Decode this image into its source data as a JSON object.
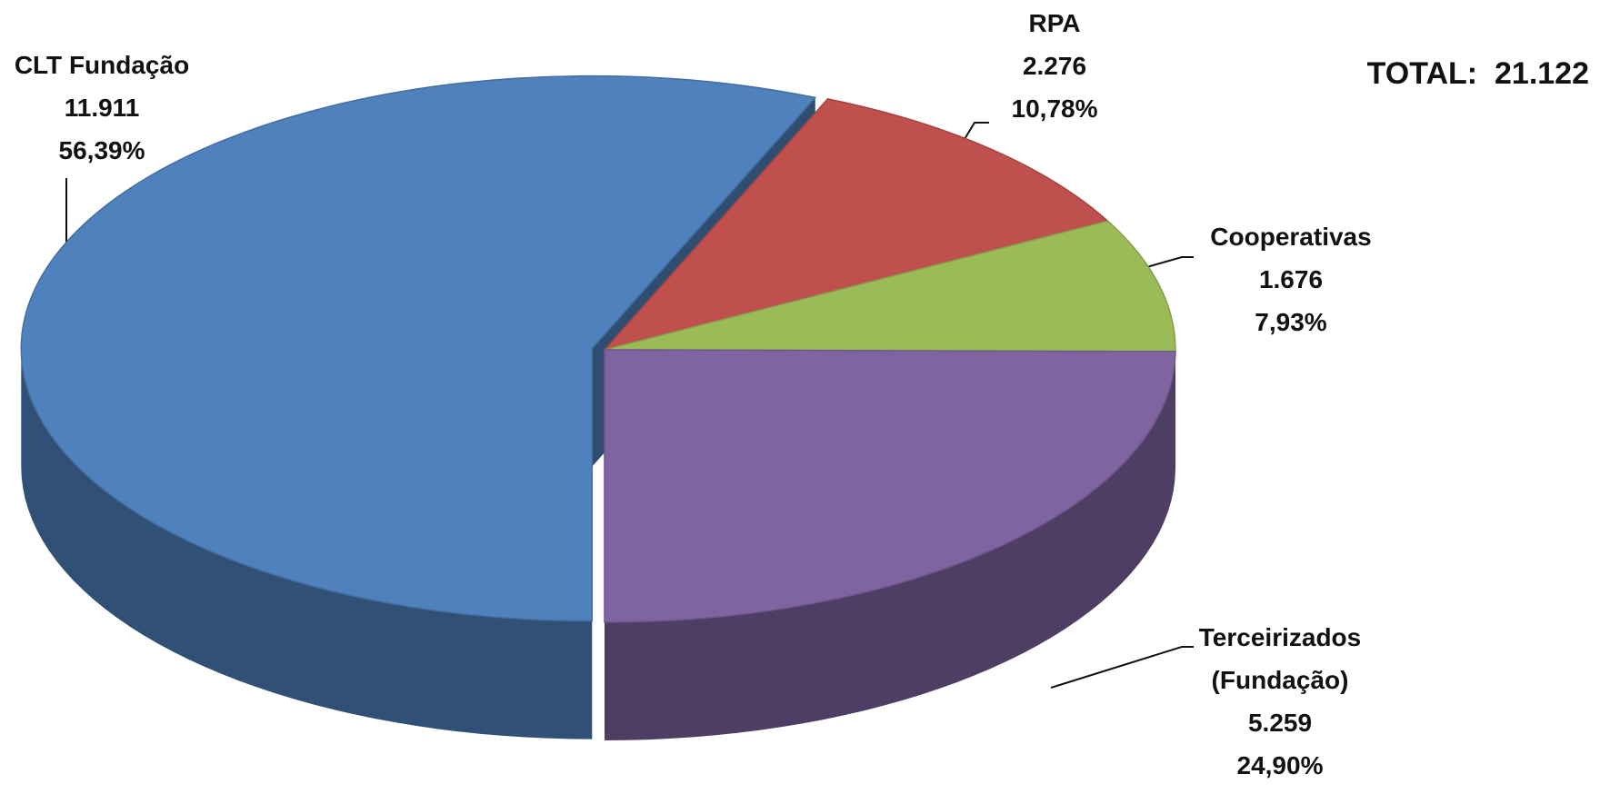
{
  "chart_data": {
    "type": "pie3d",
    "categories": [
      "CLT Fundação",
      "RPA",
      "Cooperativas",
      "Terceirizados\n(Fundação)"
    ],
    "values": [
      11911,
      2276,
      1676,
      5259
    ],
    "value_labels": [
      "11.911",
      "2.276",
      "1.676",
      "5.259"
    ],
    "percentages": [
      56.39,
      10.78,
      7.93,
      24.9
    ],
    "percentage_labels": [
      "56,39%",
      "10,78%",
      "7,93%",
      "24,90%"
    ],
    "colors": [
      "#4f81bd",
      "#c0504d",
      "#9bbb59",
      "#8064a2"
    ],
    "total_title": "TOTAL:",
    "total": {
      "value": 21122,
      "label": "21.122"
    }
  }
}
